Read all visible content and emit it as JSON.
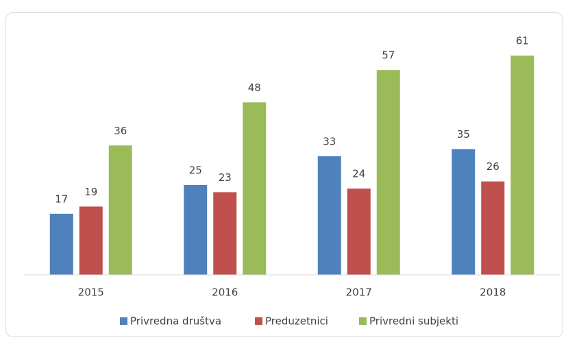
{
  "chart_data": {
    "type": "bar",
    "categories": [
      "2015",
      "2016",
      "2017",
      "2018"
    ],
    "series": [
      {
        "name": "Privredna društva",
        "color": "#4f81bd",
        "values": [
          17,
          25,
          33,
          35
        ]
      },
      {
        "name": "Preduzetnici",
        "color": "#c0504d",
        "values": [
          19,
          23,
          24,
          26
        ]
      },
      {
        "name": "Privredni subjekti",
        "color": "#9bbb59",
        "values": [
          36,
          48,
          57,
          61
        ]
      }
    ],
    "ylim": [
      0,
      70
    ],
    "legend": "bottom"
  }
}
